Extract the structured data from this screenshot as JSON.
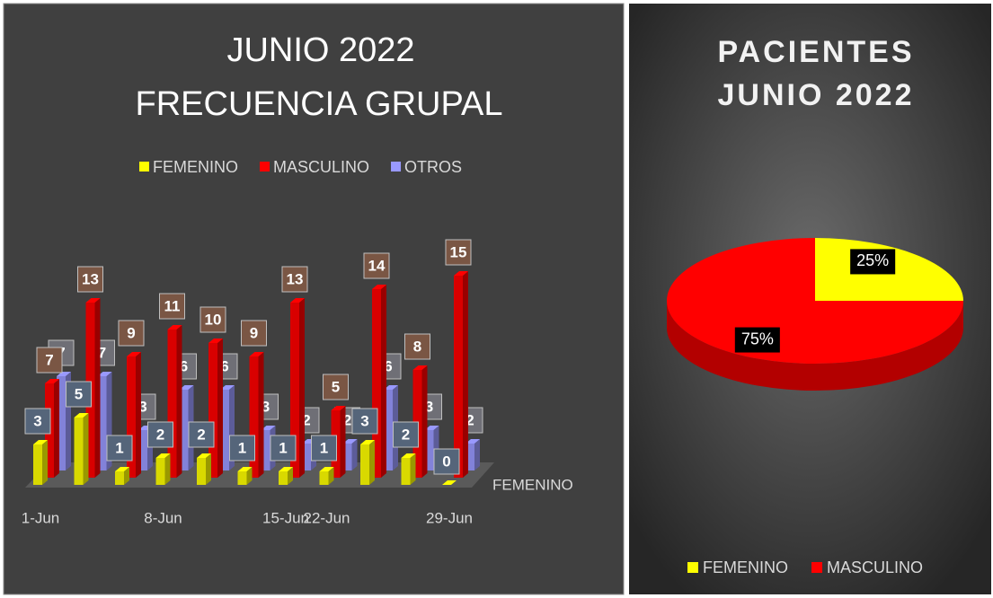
{
  "chart_data": [
    {
      "type": "bar3d",
      "title": [
        "JUNIO 2022",
        "FRECUENCIA GRUPAL"
      ],
      "categories": [
        "1-Jun",
        null,
        null,
        "8-Jun",
        null,
        null,
        "15-Jun",
        "22-Jun",
        null,
        null,
        "29-Jun"
      ],
      "series": [
        {
          "name": "FEMENINO",
          "color": "#ffff00",
          "values": [
            3,
            5,
            1,
            2,
            2,
            1,
            1,
            1,
            3,
            2,
            0
          ]
        },
        {
          "name": "MASCULINO",
          "color": "#ff0000",
          "values": [
            7,
            13,
            9,
            11,
            10,
            9,
            13,
            5,
            14,
            8,
            15
          ]
        },
        {
          "name": "OTROS",
          "color": "#9999ff",
          "values": [
            7,
            7,
            3,
            6,
            6,
            3,
            2,
            2,
            6,
            3,
            2
          ]
        }
      ],
      "depth_axis_label": "FEMENINO",
      "legend": "top"
    },
    {
      "type": "pie3d",
      "title": [
        "PACIENTES",
        "JUNIO 2022"
      ],
      "categories": [
        "FEMENINO",
        "MASCULINO"
      ],
      "values": [
        25,
        75
      ],
      "value_labels": [
        "25%",
        "75%"
      ],
      "colors": [
        "#ffff00",
        "#ff0000"
      ],
      "legend": "bottom"
    }
  ]
}
